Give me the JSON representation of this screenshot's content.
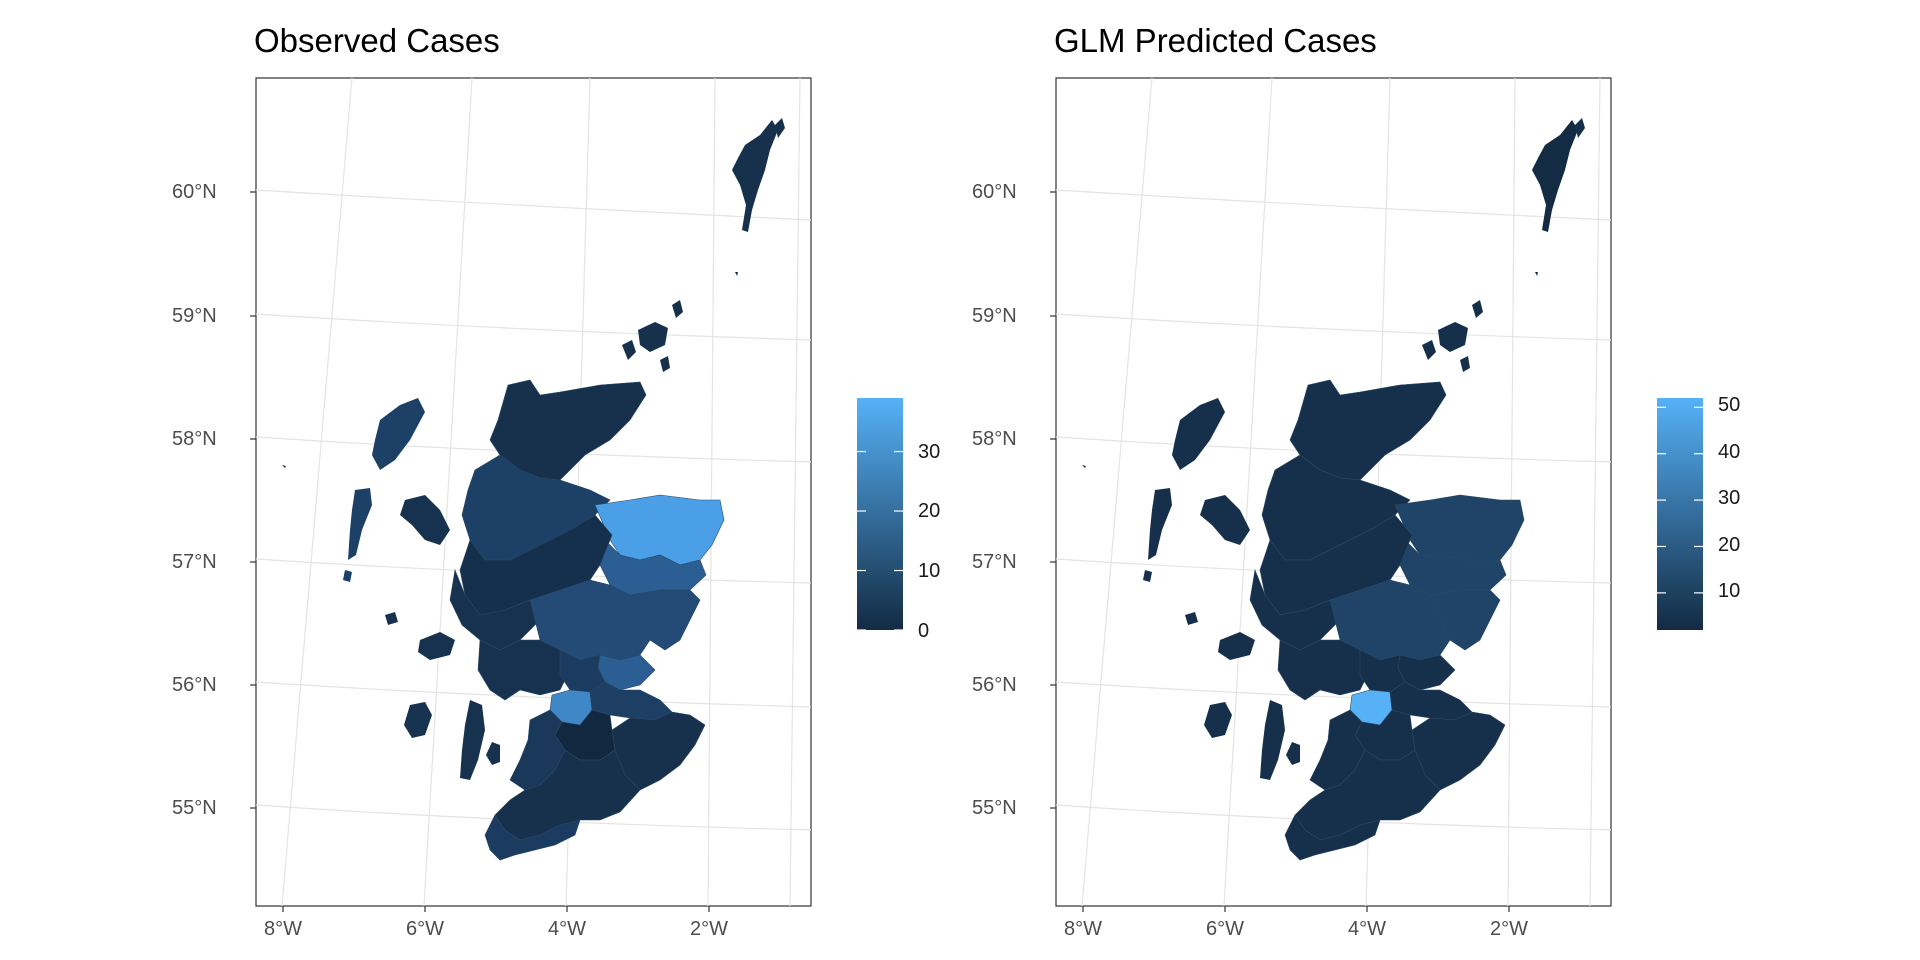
{
  "panels": [
    {
      "title": "Observed Cases",
      "lat_ticks": [
        "60°N",
        "59°N",
        "58°N",
        "57°N",
        "56°N",
        "55°N"
      ],
      "lon_ticks": [
        "8°W",
        "6°W",
        "4°W",
        "2°W"
      ],
      "legend": {
        "min": 0,
        "max": 39,
        "ticks": [
          "0",
          "10",
          "20",
          "30"
        ],
        "low_color": "#132B43",
        "high_color": "#56B1F7"
      },
      "highlights": {
        "north_east": "#4a9fe6",
        "east": "#2b5f94",
        "central_belt": "#3f87c6",
        "islands_north": "#17314d"
      }
    },
    {
      "title": "GLM Predicted Cases",
      "lat_ticks": [
        "60°N",
        "59°N",
        "58°N",
        "57°N",
        "56°N",
        "55°N"
      ],
      "lon_ticks": [
        "8°W",
        "6°W",
        "4°W",
        "2°W"
      ],
      "legend": {
        "min": 2,
        "max": 52,
        "ticks": [
          "10",
          "20",
          "30",
          "40",
          "50"
        ],
        "low_color": "#132B43",
        "high_color": "#56B1F7"
      },
      "highlights": {
        "north_east": "#1f4266",
        "east": "#1c3d60",
        "central_belt": "#56B1F7",
        "islands_north": "#132B43"
      }
    }
  ]
}
